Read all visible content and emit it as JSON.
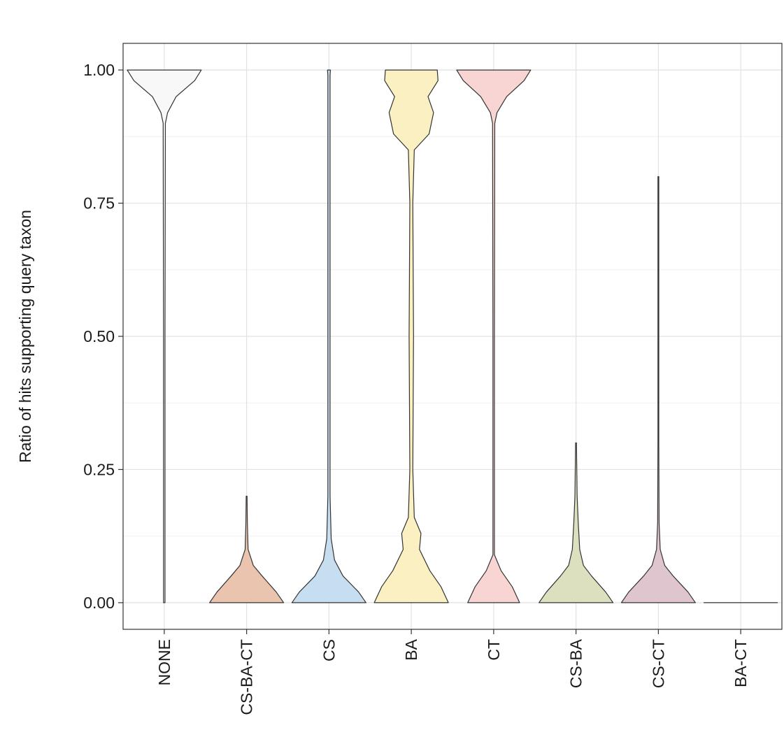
{
  "chart_data": {
    "type": "violin",
    "title": "",
    "xlabel": "",
    "ylabel": "Ratio of hits supporting query taxon",
    "ylim": [
      -0.05,
      1.05
    ],
    "y_ticks": [
      0.0,
      0.25,
      0.5,
      0.75,
      1.0
    ],
    "y_tick_labels": [
      "0.00",
      "0.25",
      "0.50",
      "0.75",
      "1.00"
    ],
    "grid": true,
    "legend": "none",
    "categories": [
      "NONE",
      "CS-BA-CT",
      "CS",
      "BA",
      "CT",
      "CS-BA",
      "CS-CT",
      "BA-CT"
    ],
    "series": [
      {
        "category": "NONE",
        "color": "#f8f8f8",
        "min": 0.0,
        "max": 1.0,
        "density_y": [
          0.0,
          0.5,
          0.9,
          0.92,
          0.95,
          0.98,
          1.0
        ],
        "density_w": [
          0.02,
          0.02,
          0.03,
          0.09,
          0.32,
          0.82,
          1.0
        ]
      },
      {
        "category": "CS-BA-CT",
        "color": "#ebc4b0",
        "min": 0.0,
        "max": 0.2,
        "density_y": [
          0.0,
          0.02,
          0.05,
          0.07,
          0.1,
          0.15,
          0.2
        ],
        "density_w": [
          1.0,
          0.8,
          0.42,
          0.18,
          0.04,
          0.02,
          0.0
        ]
      },
      {
        "category": "CS",
        "color": "#c7ddf0",
        "min": 0.0,
        "max": 1.0,
        "density_y": [
          0.0,
          0.02,
          0.05,
          0.08,
          0.12,
          0.2,
          0.5,
          0.99,
          1.0
        ],
        "density_w": [
          1.0,
          0.8,
          0.38,
          0.15,
          0.06,
          0.03,
          0.03,
          0.03,
          0.04
        ]
      },
      {
        "category": "BA",
        "color": "#fbf0c2",
        "min": 0.0,
        "max": 1.0,
        "density_y": [
          0.0,
          0.03,
          0.06,
          0.1,
          0.13,
          0.16,
          0.25,
          0.5,
          0.75,
          0.85,
          0.88,
          0.92,
          0.95,
          0.98,
          1.0
        ],
        "density_w": [
          1.0,
          0.8,
          0.5,
          0.22,
          0.26,
          0.08,
          0.04,
          0.06,
          0.04,
          0.08,
          0.48,
          0.6,
          0.45,
          0.72,
          0.7
        ]
      },
      {
        "category": "CT",
        "color": "#f8d4d2",
        "min": 0.0,
        "max": 1.0,
        "density_y": [
          0.0,
          0.03,
          0.06,
          0.09,
          0.5,
          0.9,
          0.92,
          0.95,
          0.98,
          1.0
        ],
        "density_w": [
          0.7,
          0.5,
          0.2,
          0.02,
          0.02,
          0.03,
          0.09,
          0.35,
          0.82,
          1.0
        ]
      },
      {
        "category": "CS-BA",
        "color": "#dce0bf",
        "min": 0.0,
        "max": 0.3,
        "density_y": [
          0.0,
          0.02,
          0.05,
          0.07,
          0.1,
          0.15,
          0.2,
          0.3
        ],
        "density_w": [
          1.0,
          0.8,
          0.42,
          0.2,
          0.1,
          0.06,
          0.03,
          0.0
        ]
      },
      {
        "category": "CS-CT",
        "color": "#dfc6ce",
        "min": 0.0,
        "max": 0.8,
        "density_y": [
          0.0,
          0.02,
          0.05,
          0.07,
          0.1,
          0.15,
          0.3,
          0.8
        ],
        "density_w": [
          1.0,
          0.8,
          0.4,
          0.17,
          0.05,
          0.02,
          0.01,
          0.0
        ]
      },
      {
        "category": "BA-CT",
        "color": "#ffffff",
        "min": 0.0,
        "max": 0.0,
        "density_y": [
          0.0
        ],
        "density_w": [
          1.0
        ]
      }
    ]
  }
}
